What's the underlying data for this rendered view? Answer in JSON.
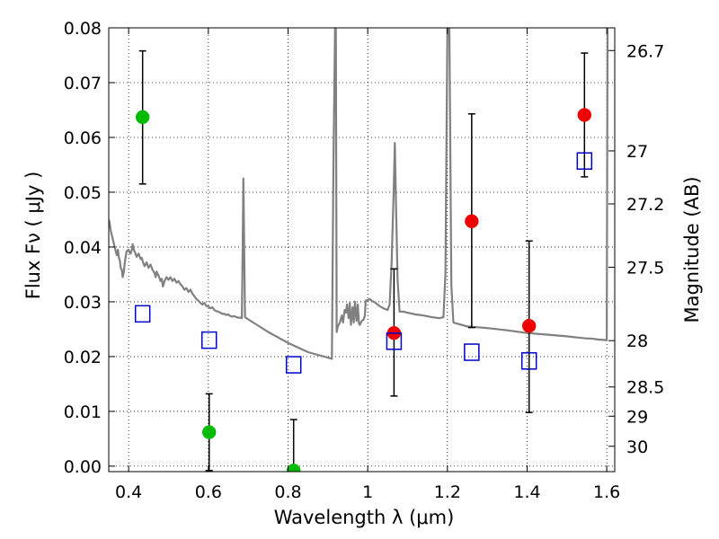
{
  "chart_data": {
    "type": "scatter",
    "xlabel": "Wavelength  λ (μm)",
    "ylabel": "Flux  Fν  ( μJy )",
    "ylabel_right": "Magnitude (AB)",
    "xlim": [
      0.35,
      1.62
    ],
    "ylim": [
      -0.001,
      0.08
    ],
    "x_ticks": [
      0.4,
      0.6,
      0.8,
      1.0,
      1.2,
      1.4,
      1.6
    ],
    "x_tick_labels": [
      "0.4",
      "0.6",
      "0.8",
      "1",
      "1.2",
      "1.4",
      "1.6"
    ],
    "y_ticks": [
      0.0,
      0.01,
      0.02,
      0.03,
      0.04,
      0.05,
      0.06,
      0.07,
      0.08
    ],
    "y_tick_labels": [
      "0.00",
      "0.01",
      "0.02",
      "0.03",
      "0.04",
      "0.05",
      "0.06",
      "0.07",
      "0.08"
    ],
    "right_ticks": [
      {
        "label": "26.7",
        "value": 26.7
      },
      {
        "label": "27",
        "value": 27.0
      },
      {
        "label": "27.2",
        "value": 27.2
      },
      {
        "label": "27.5",
        "value": 27.5
      },
      {
        "label": "28",
        "value": 28.0
      },
      {
        "label": "28.5",
        "value": 28.5
      },
      {
        "label": "29",
        "value": 29.0
      },
      {
        "label": "30",
        "value": 30.0
      }
    ],
    "grid": true,
    "colors": {
      "spectrum": "#808080",
      "green": "#00bb00",
      "red": "#ee0000",
      "model_box": "#0000cc",
      "errorbar": "#000000"
    },
    "spectrum": [
      [
        0.35,
        0.045
      ],
      [
        0.352,
        0.0445
      ],
      [
        0.355,
        0.043
      ],
      [
        0.36,
        0.0415
      ],
      [
        0.365,
        0.04
      ],
      [
        0.37,
        0.0385
      ],
      [
        0.373,
        0.0395
      ],
      [
        0.375,
        0.0382
      ],
      [
        0.378,
        0.0375
      ],
      [
        0.38,
        0.0362
      ],
      [
        0.383,
        0.0358
      ],
      [
        0.385,
        0.0345
      ],
      [
        0.388,
        0.0355
      ],
      [
        0.39,
        0.037
      ],
      [
        0.393,
        0.0385
      ],
      [
        0.395,
        0.0392
      ],
      [
        0.4,
        0.0395
      ],
      [
        0.402,
        0.039
      ],
      [
        0.405,
        0.0388
      ],
      [
        0.408,
        0.0395
      ],
      [
        0.41,
        0.0405
      ],
      [
        0.413,
        0.0395
      ],
      [
        0.416,
        0.039
      ],
      [
        0.42,
        0.0382
      ],
      [
        0.425,
        0.0388
      ],
      [
        0.43,
        0.0378
      ],
      [
        0.433,
        0.038
      ],
      [
        0.436,
        0.0372
      ],
      [
        0.44,
        0.0365
      ],
      [
        0.445,
        0.0372
      ],
      [
        0.45,
        0.0362
      ],
      [
        0.455,
        0.0368
      ],
      [
        0.46,
        0.0358
      ],
      [
        0.465,
        0.0352
      ],
      [
        0.468,
        0.0345
      ],
      [
        0.47,
        0.0355
      ],
      [
        0.475,
        0.0348
      ],
      [
        0.48,
        0.0338
      ],
      [
        0.483,
        0.0342
      ],
      [
        0.486,
        0.0328
      ],
      [
        0.49,
        0.0338
      ],
      [
        0.495,
        0.0345
      ],
      [
        0.5,
        0.034
      ],
      [
        0.505,
        0.0345
      ],
      [
        0.51,
        0.0338
      ],
      [
        0.515,
        0.0342
      ],
      [
        0.52,
        0.0335
      ],
      [
        0.525,
        0.0338
      ],
      [
        0.53,
        0.0332
      ],
      [
        0.535,
        0.0328
      ],
      [
        0.54,
        0.0322
      ],
      [
        0.545,
        0.0325
      ],
      [
        0.55,
        0.0318
      ],
      [
        0.555,
        0.0322
      ],
      [
        0.56,
        0.0315
      ],
      [
        0.565,
        0.031
      ],
      [
        0.57,
        0.0305
      ],
      [
        0.575,
        0.0302
      ],
      [
        0.58,
        0.0298
      ],
      [
        0.585,
        0.0295
      ],
      [
        0.59,
        0.0298
      ],
      [
        0.595,
        0.0292
      ],
      [
        0.6,
        0.0292
      ],
      [
        0.605,
        0.0288
      ],
      [
        0.61,
        0.029
      ],
      [
        0.615,
        0.0285
      ],
      [
        0.62,
        0.0283
      ],
      [
        0.625,
        0.0282
      ],
      [
        0.63,
        0.028
      ],
      [
        0.635,
        0.0278
      ],
      [
        0.64,
        0.0278
      ],
      [
        0.645,
        0.0276
      ],
      [
        0.65,
        0.0277
      ],
      [
        0.655,
        0.0274
      ],
      [
        0.66,
        0.0273
      ],
      [
        0.665,
        0.0274
      ],
      [
        0.67,
        0.0272
      ],
      [
        0.675,
        0.0271
      ],
      [
        0.68,
        0.0271
      ],
      [
        0.684,
        0.027
      ],
      [
        0.686,
        0.04
      ],
      [
        0.688,
        0.0525
      ],
      [
        0.69,
        0.04
      ],
      [
        0.692,
        0.0272
      ],
      [
        0.7,
        0.0268
      ],
      [
        0.75,
        0.0245
      ],
      [
        0.8,
        0.0225
      ],
      [
        0.85,
        0.0208
      ],
      [
        0.9,
        0.0198
      ],
      [
        0.91,
        0.0196
      ],
      [
        0.914,
        0.055
      ],
      [
        0.918,
        0.08
      ],
      [
        0.92,
        0.08
      ],
      [
        0.922,
        0.0245
      ],
      [
        0.925,
        0.0255
      ],
      [
        0.93,
        0.0262
      ],
      [
        0.935,
        0.0275
      ],
      [
        0.938,
        0.0262
      ],
      [
        0.942,
        0.0285
      ],
      [
        0.945,
        0.028
      ],
      [
        0.948,
        0.0295
      ],
      [
        0.952,
        0.027
      ],
      [
        0.955,
        0.0298
      ],
      [
        0.958,
        0.0258
      ],
      [
        0.962,
        0.029
      ],
      [
        0.965,
        0.0262
      ],
      [
        0.968,
        0.03
      ],
      [
        0.972,
        0.0265
      ],
      [
        0.975,
        0.0295
      ],
      [
        0.978,
        0.026
      ],
      [
        0.98,
        0.0258
      ],
      [
        0.985,
        0.0265
      ],
      [
        0.99,
        0.0268
      ],
      [
        0.993,
        0.0275
      ],
      [
        0.995,
        0.0302
      ],
      [
        1.0,
        0.0303
      ],
      [
        1.005,
        0.0305
      ],
      [
        1.01,
        0.0302
      ],
      [
        1.02,
        0.0298
      ],
      [
        1.03,
        0.0292
      ],
      [
        1.04,
        0.0288
      ],
      [
        1.05,
        0.0285
      ],
      [
        1.055,
        0.0295
      ],
      [
        1.06,
        0.037
      ],
      [
        1.065,
        0.05
      ],
      [
        1.068,
        0.059
      ],
      [
        1.071,
        0.048
      ],
      [
        1.075,
        0.034
      ],
      [
        1.08,
        0.0282
      ],
      [
        1.09,
        0.0282
      ],
      [
        1.1,
        0.028
      ],
      [
        1.12,
        0.0277
      ],
      [
        1.14,
        0.0275
      ],
      [
        1.16,
        0.0272
      ],
      [
        1.18,
        0.027
      ],
      [
        1.19,
        0.0272
      ],
      [
        1.195,
        0.035
      ],
      [
        1.2,
        0.08
      ],
      [
        1.205,
        0.08
      ],
      [
        1.21,
        0.033
      ],
      [
        1.215,
        0.0262
      ],
      [
        1.25,
        0.0255
      ],
      [
        1.3,
        0.0252
      ],
      [
        1.35,
        0.0248
      ],
      [
        1.4,
        0.0243
      ],
      [
        1.45,
        0.024
      ],
      [
        1.5,
        0.0237
      ],
      [
        1.55,
        0.0233
      ],
      [
        1.56,
        0.0233
      ],
      [
        1.58,
        0.0231
      ],
      [
        1.6,
        0.023
      ],
      [
        1.602,
        0.08
      ]
    ],
    "series": [
      {
        "color": "green",
        "points": [
          {
            "x": 0.435,
            "y": 0.0637,
            "ylow": 0.0515,
            "yhigh": 0.0758
          },
          {
            "x": 0.602,
            "y": 0.0062,
            "ylow": -0.0008,
            "yhigh": 0.0132
          },
          {
            "x": 0.814,
            "y": -0.0008,
            "ylow": -0.0008,
            "yhigh": 0.0085
          }
        ]
      },
      {
        "color": "red",
        "points": [
          {
            "x": 1.066,
            "y": 0.0243,
            "ylow": 0.0128,
            "yhigh": 0.036
          },
          {
            "x": 1.261,
            "y": 0.0447,
            "ylow": 0.0253,
            "yhigh": 0.0643
          },
          {
            "x": 1.405,
            "y": 0.0256,
            "ylow": 0.0098,
            "yhigh": 0.0411
          },
          {
            "x": 1.544,
            "y": 0.0641,
            "ylow": 0.0528,
            "yhigh": 0.0754
          }
        ]
      },
      {
        "color": "model_box",
        "marker": "open-square",
        "points": [
          {
            "x": 0.435,
            "y": 0.0278
          },
          {
            "x": 0.602,
            "y": 0.023
          },
          {
            "x": 0.814,
            "y": 0.0185
          },
          {
            "x": 1.066,
            "y": 0.0228
          },
          {
            "x": 1.261,
            "y": 0.0208
          },
          {
            "x": 1.405,
            "y": 0.0192
          },
          {
            "x": 1.544,
            "y": 0.0557
          }
        ]
      }
    ]
  }
}
